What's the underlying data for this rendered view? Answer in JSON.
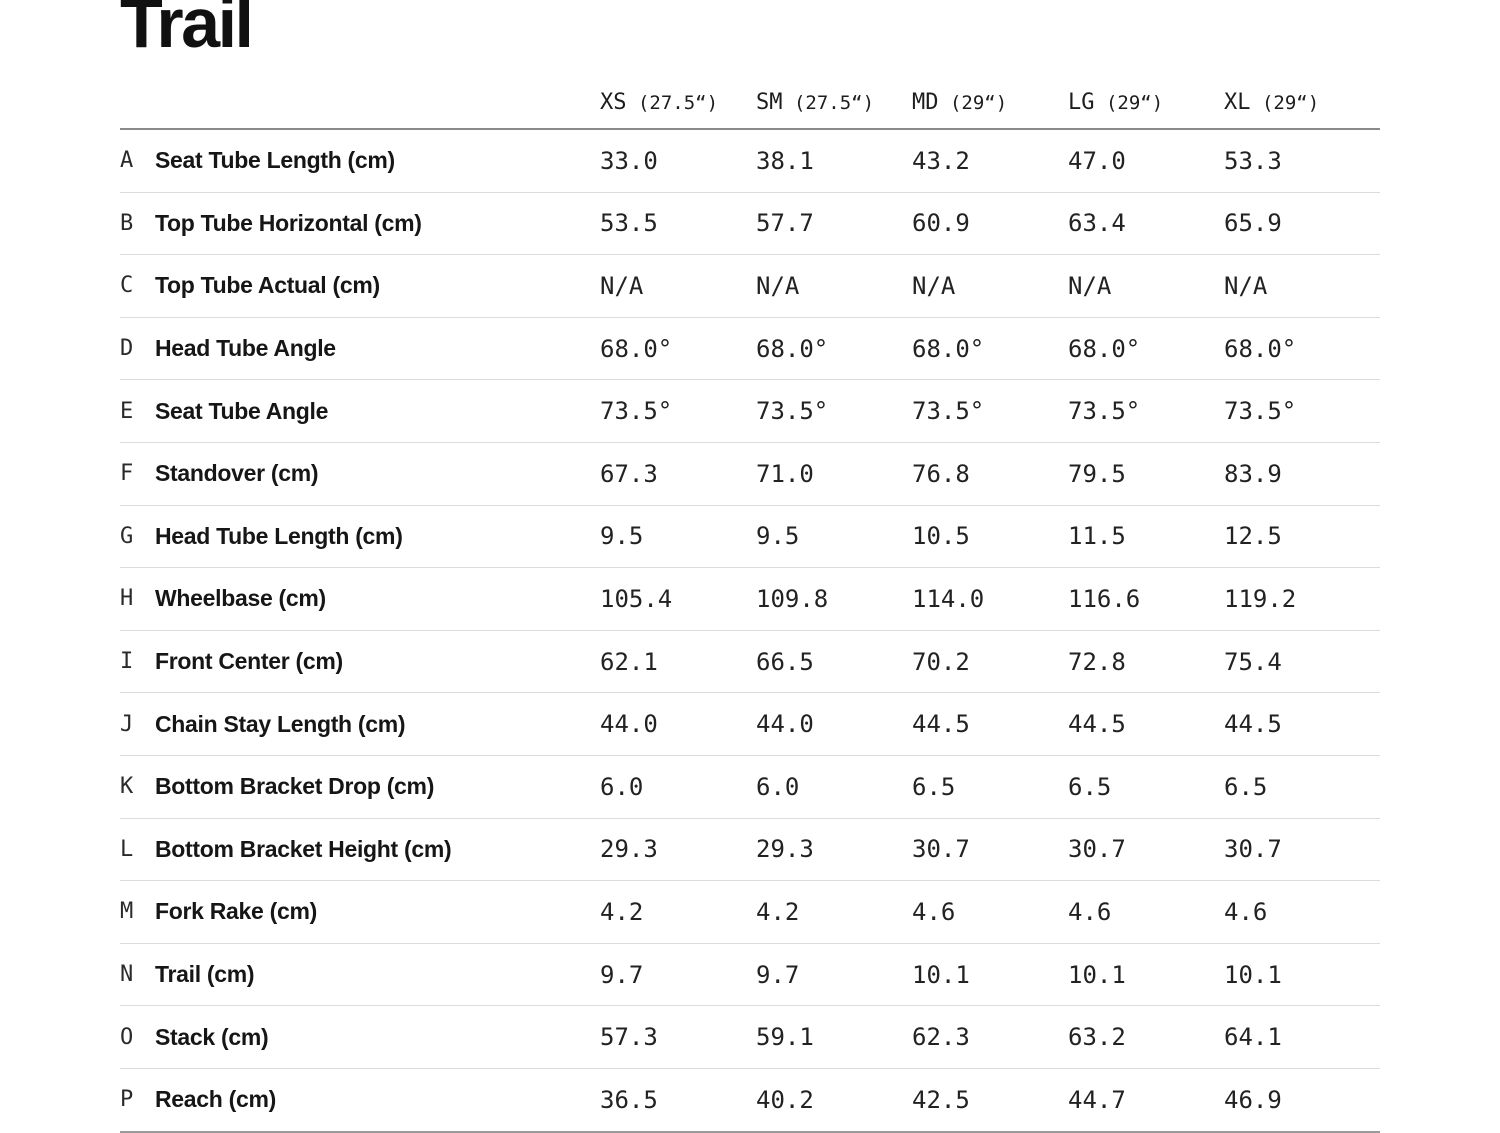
{
  "title": "Trail",
  "colors": {
    "text": "#1a1a1a",
    "row_divider": "#dcdcdc",
    "header_rule": "#8a8a8a",
    "bottom_rule": "#9a9a9a",
    "background": "#ffffff"
  },
  "table": {
    "columns": [
      {
        "size": "XS",
        "wheel": "(27.5“)"
      },
      {
        "size": "SM",
        "wheel": "(27.5“)"
      },
      {
        "size": "MD",
        "wheel": "(29“)"
      },
      {
        "size": "LG",
        "wheel": "(29“)"
      },
      {
        "size": "XL",
        "wheel": "(29“)"
      }
    ],
    "rows": [
      {
        "letter": "A",
        "label": "Seat Tube Length (cm)",
        "values": [
          "33.0",
          "38.1",
          "43.2",
          "47.0",
          "53.3"
        ]
      },
      {
        "letter": "B",
        "label": "Top Tube Horizontal (cm)",
        "values": [
          "53.5",
          "57.7",
          "60.9",
          "63.4",
          "65.9"
        ]
      },
      {
        "letter": "C",
        "label": "Top Tube Actual (cm)",
        "values": [
          "N/A",
          "N/A",
          "N/A",
          "N/A",
          "N/A"
        ]
      },
      {
        "letter": "D",
        "label": "Head Tube Angle",
        "values": [
          "68.0°",
          "68.0°",
          "68.0°",
          "68.0°",
          "68.0°"
        ]
      },
      {
        "letter": "E",
        "label": "Seat Tube Angle",
        "values": [
          "73.5°",
          "73.5°",
          "73.5°",
          "73.5°",
          "73.5°"
        ]
      },
      {
        "letter": "F",
        "label": "Standover (cm)",
        "values": [
          "67.3",
          "71.0",
          "76.8",
          "79.5",
          "83.9"
        ]
      },
      {
        "letter": "G",
        "label": "Head Tube Length (cm)",
        "values": [
          "9.5",
          "9.5",
          "10.5",
          "11.5",
          "12.5"
        ]
      },
      {
        "letter": "H",
        "label": "Wheelbase (cm)",
        "values": [
          "105.4",
          "109.8",
          "114.0",
          "116.6",
          "119.2"
        ]
      },
      {
        "letter": "I",
        "label": "Front Center (cm)",
        "values": [
          "62.1",
          "66.5",
          "70.2",
          "72.8",
          "75.4"
        ]
      },
      {
        "letter": "J",
        "label": "Chain Stay Length (cm)",
        "values": [
          "44.0",
          "44.0",
          "44.5",
          "44.5",
          "44.5"
        ]
      },
      {
        "letter": "K",
        "label": "Bottom Bracket Drop (cm)",
        "values": [
          "6.0",
          "6.0",
          "6.5",
          "6.5",
          "6.5"
        ]
      },
      {
        "letter": "L",
        "label": "Bottom Bracket Height (cm)",
        "values": [
          "29.3",
          "29.3",
          "30.7",
          "30.7",
          "30.7"
        ]
      },
      {
        "letter": "M",
        "label": "Fork Rake (cm)",
        "values": [
          "4.2",
          "4.2",
          "4.6",
          "4.6",
          "4.6"
        ]
      },
      {
        "letter": "N",
        "label": "Trail (cm)",
        "values": [
          "9.7",
          "9.7",
          "10.1",
          "10.1",
          "10.1"
        ]
      },
      {
        "letter": "O",
        "label": "Stack (cm)",
        "values": [
          "57.3",
          "59.1",
          "62.3",
          "63.2",
          "64.1"
        ]
      },
      {
        "letter": "P",
        "label": "Reach (cm)",
        "values": [
          "36.5",
          "40.2",
          "42.5",
          "44.7",
          "46.9"
        ]
      }
    ]
  }
}
